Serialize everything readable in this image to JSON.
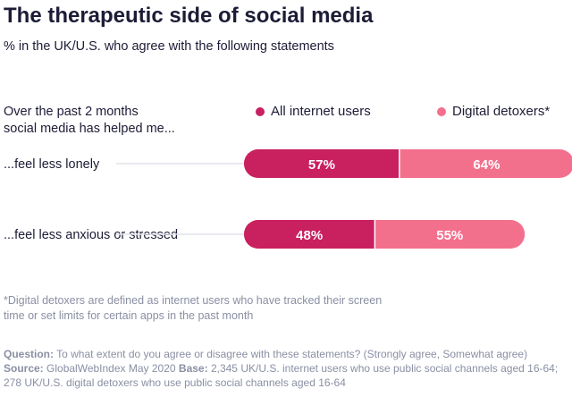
{
  "header": {
    "title": "The therapeutic side of social media",
    "subtitle": "% in the UK/U.S. who agree with the following statements"
  },
  "intro_lines": [
    "Over the past 2 months",
    "social media has helped me..."
  ],
  "footnote": "*Digital detoxers are defined as internet users who have tracked their screen time or set limits for certain apps in the past month",
  "source": {
    "question_label": "Question:",
    "question_text": "To what extent do you agree or disagree with these statements? (Strongly agree, Somewhat agree)",
    "source_label": "Source:",
    "source_text": "GlobalWebIndex May 2020",
    "base_label": "Base:",
    "base_text": "2,345 UK/U.S. internet users who use public social channels aged 16-64; 278 UK/U.S. digital detoxers who use public social channels aged 16-64"
  },
  "chart_data": {
    "type": "bar",
    "orientation": "horizontal-stacked",
    "title": "The therapeutic side of social media",
    "subtitle": "% in the UK/U.S. who agree with the following statements",
    "categories": [
      "...feel less lonely",
      "...feel less anxious or stressed"
    ],
    "series": [
      {
        "name": "All internet users",
        "color": "#c9205f",
        "values": [
          57,
          48
        ]
      },
      {
        "name": "Digital detoxers*",
        "color": "#f3708d",
        "values": [
          64,
          55
        ]
      }
    ],
    "value_suffix": "%",
    "legend_position": "top-right",
    "grid": false
  }
}
